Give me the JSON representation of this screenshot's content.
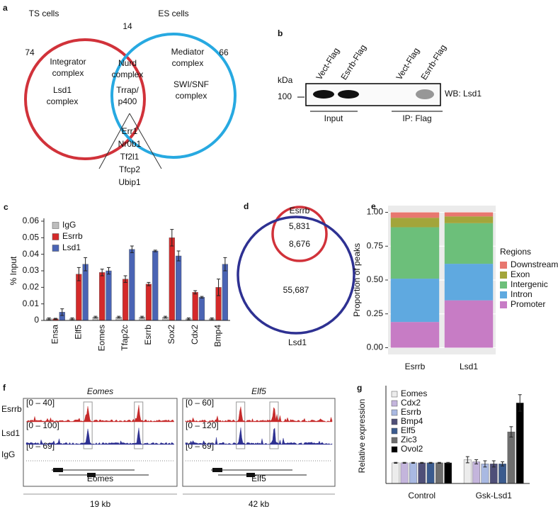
{
  "panel_a": {
    "label": "a",
    "left_title": "TS cells",
    "right_title": "ES cells",
    "left_count": 74,
    "overlap_count": 14,
    "right_count": 66,
    "left_items": [
      [
        "Integrator",
        "complex"
      ],
      [
        "Lsd1",
        "complex"
      ]
    ],
    "overlap_items": [
      [
        "Nurd",
        "complex"
      ],
      [
        "Trrap/",
        "p400"
      ]
    ],
    "right_items": [
      [
        "Mediator",
        "complex"
      ],
      [
        "SWI/SNF",
        "complex"
      ]
    ],
    "factors": [
      "Err1",
      "Nr0b1",
      "Tf2l1",
      "Tfcp2",
      "Ubip1"
    ]
  },
  "panel_b": {
    "label": "b",
    "unit": "kDa",
    "marker": 100,
    "lanes": [
      "Vect-Flag",
      "Esrrb-Flag",
      "Vect-Flag",
      "Esrrb-Flag"
    ],
    "groups": [
      "Input",
      "IP: Flag"
    ],
    "antibody": "WB: Lsd1"
  },
  "panel_d": {
    "label": "d",
    "sets": [
      "Esrrb",
      "Lsd1"
    ],
    "counts": [
      "5,831",
      "8,676",
      "55,687"
    ]
  },
  "panel_f": {
    "label": "f",
    "tracks": [
      "Esrrb",
      "Lsd1",
      "IgG"
    ],
    "loci": [
      {
        "gene": "Eomes",
        "ranges": [
          "[0 – 40]",
          "[0 – 100]",
          "[0 – 69]"
        ],
        "gene_label": "Eomes",
        "scale": "19 kb"
      },
      {
        "gene": "Elf5",
        "ranges": [
          "[0 – 60]",
          "[0 – 120]",
          "[0 – 69]"
        ],
        "gene_label": "Elf5",
        "scale": "42 kb"
      }
    ]
  },
  "chart_data": [
    {
      "type": "bar",
      "label": "c",
      "ylabel": "% Input",
      "categories": [
        "Ensa",
        "Elf5",
        "Eomes",
        "Tfap2c",
        "Esrrb",
        "Sox2",
        "Cdx2",
        "Bmp4"
      ],
      "series": [
        {
          "name": "IgG",
          "color": "#bdbdbd",
          "values": [
            0.001,
            0.001,
            0.002,
            0.002,
            0.002,
            0.002,
            0.001,
            0.001
          ],
          "errors": [
            0.0005,
            0.0005,
            0.0005,
            0.0005,
            0.0005,
            0.0005,
            0.0005,
            0.0005
          ]
        },
        {
          "name": "Esrrb",
          "color": "#d42a2a",
          "values": [
            0.001,
            0.028,
            0.029,
            0.025,
            0.022,
            0.05,
            0.017,
            0.02
          ],
          "errors": [
            0.0003,
            0.004,
            0.002,
            0.002,
            0.001,
            0.005,
            0.001,
            0.005
          ]
        },
        {
          "name": "Lsd1",
          "color": "#4a64b4",
          "values": [
            0.005,
            0.034,
            0.03,
            0.043,
            0.042,
            0.039,
            0.014,
            0.034
          ],
          "errors": [
            0.002,
            0.004,
            0.002,
            0.002,
            0.0005,
            0.003,
            0.0005,
            0.004
          ]
        }
      ],
      "ylim": [
        0,
        0.06
      ],
      "yticks": [
        0,
        0.01,
        0.02,
        0.03,
        0.04,
        0.05,
        0.06
      ],
      "legend": "upper left",
      "xtick_rotation": 90
    },
    {
      "type": "stacked_bar",
      "label": "e",
      "ylabel": "Proportion of peaks",
      "legend_title": "Regions",
      "categories": [
        "Esrrb",
        "Lsd1"
      ],
      "series": [
        {
          "name": "Downstream",
          "color": "#e8776f",
          "values": [
            0.04,
            0.03
          ]
        },
        {
          "name": "Exon",
          "color": "#a3a53a",
          "values": [
            0.07,
            0.05
          ]
        },
        {
          "name": "Intergenic",
          "color": "#6cbf7a",
          "values": [
            0.38,
            0.3
          ]
        },
        {
          "name": "Intron",
          "color": "#5fa9e0",
          "values": [
            0.32,
            0.27
          ]
        },
        {
          "name": "Promoter",
          "color": "#c77cc5",
          "values": [
            0.19,
            0.35
          ]
        }
      ],
      "ylim": [
        -0.05,
        1.05
      ],
      "yticks": [
        {
          "value": 0,
          "label": "0.00"
        },
        {
          "value": 0.25,
          "label": "0.25"
        },
        {
          "value": 0.5,
          "label": "0.50"
        },
        {
          "value": 0.75,
          "label": "0.75"
        },
        {
          "value": 1,
          "label": "1.00"
        }
      ],
      "grid": true,
      "legend": "right"
    },
    {
      "type": "bar",
      "label": "g",
      "ylabel": "Relative expression",
      "categories": [
        "Control",
        "Gsk-Lsd1"
      ],
      "series": [
        {
          "name": "Eomes",
          "color": "#ececec",
          "values": [
            1,
            1.15
          ],
          "errors": [
            0.02,
            0.15
          ]
        },
        {
          "name": "Cdx2",
          "color": "#c4b5dc",
          "values": [
            1,
            1.05
          ],
          "errors": [
            0.02,
            0.1
          ]
        },
        {
          "name": "Esrrb",
          "color": "#a9b9e2",
          "values": [
            1,
            0.95
          ],
          "errors": [
            0.02,
            0.15
          ]
        },
        {
          "name": "Bmp4",
          "color": "#4f4f78",
          "values": [
            1,
            0.95
          ],
          "errors": [
            0.02,
            0.15
          ]
        },
        {
          "name": "Elf5",
          "color": "#3b5b8e",
          "values": [
            1,
            0.95
          ],
          "errors": [
            0.02,
            0.1
          ]
        },
        {
          "name": "Zic3",
          "color": "#6e6e6e",
          "values": [
            1,
            2.5
          ],
          "errors": [
            0.02,
            0.25
          ]
        },
        {
          "name": "Ovol2",
          "color": "#000000",
          "values": [
            1,
            3.9
          ],
          "errors": [
            0.02,
            0.4
          ]
        }
      ],
      "ylim": [
        0,
        4.6
      ],
      "legend": "upper left"
    }
  ]
}
